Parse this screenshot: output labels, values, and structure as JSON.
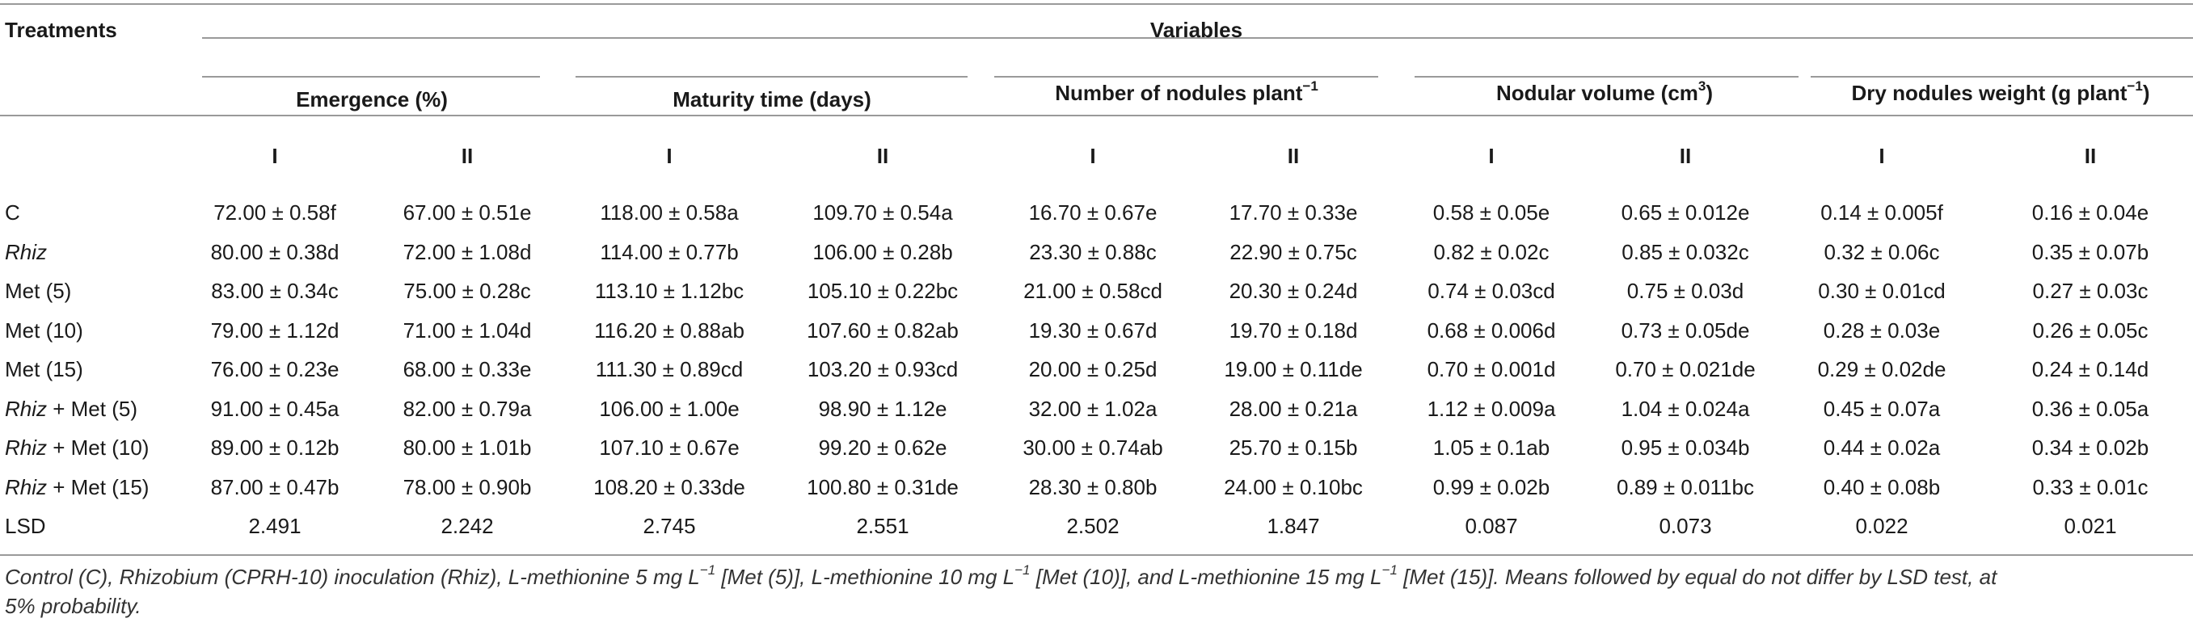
{
  "table": {
    "corner_header": "Treatments",
    "group_header": "Variables",
    "variables": [
      {
        "label": "Emergence (%)",
        "sup": ""
      },
      {
        "label": "Maturity time (days)",
        "sup": ""
      },
      {
        "label": "Number of nodules plant",
        "sup": "−1"
      },
      {
        "label": "Nodular volume (cm",
        "sup": "3",
        "suffix": ")"
      },
      {
        "label": "Dry nodules weight (g plant",
        "sup": "−1",
        "suffix": ")"
      }
    ],
    "sub_headers": [
      "I",
      "II",
      "I",
      "II",
      "I",
      "II",
      "I",
      "II",
      "I",
      "II"
    ],
    "rows": [
      {
        "pre": "",
        "label": "C",
        "values": [
          "72.00 ± 0.58f",
          "67.00 ± 0.51e",
          "118.00 ± 0.58a",
          "109.70 ± 0.54a",
          "16.70 ± 0.67e",
          "17.70 ± 0.33e",
          "0.58 ± 0.05e",
          "0.65 ± 0.012e",
          "0.14 ± 0.005f",
          "0.16 ± 0.04e"
        ]
      },
      {
        "pre": "Rhiz",
        "label": "",
        "values": [
          "80.00 ± 0.38d",
          "72.00 ± 1.08d",
          "114.00 ± 0.77b",
          "106.00 ± 0.28b",
          "23.30 ± 0.88c",
          "22.90 ± 0.75c",
          "0.82 ± 0.02c",
          "0.85 ± 0.032c",
          "0.32 ± 0.06c",
          "0.35 ± 0.07b"
        ]
      },
      {
        "pre": "",
        "label": "Met (5)",
        "values": [
          "83.00 ± 0.34c",
          "75.00 ± 0.28c",
          "113.10 ± 1.12bc",
          "105.10 ± 0.22bc",
          "21.00 ± 0.58cd",
          "20.30 ± 0.24d",
          "0.74 ± 0.03cd",
          "0.75 ± 0.03d",
          "0.30 ± 0.01cd",
          "0.27 ± 0.03c"
        ]
      },
      {
        "pre": "",
        "label": "Met (10)",
        "values": [
          "79.00 ± 1.12d",
          "71.00 ± 1.04d",
          "116.20 ± 0.88ab",
          "107.60 ± 0.82ab",
          "19.30 ± 0.67d",
          "19.70 ± 0.18d",
          "0.68 ± 0.006d",
          "0.73 ± 0.05de",
          "0.28 ± 0.03e",
          "0.26 ± 0.05c"
        ]
      },
      {
        "pre": "",
        "label": "Met (15)",
        "values": [
          "76.00 ± 0.23e",
          "68.00 ± 0.33e",
          "111.30 ± 0.89cd",
          "103.20 ± 0.93cd",
          "20.00 ± 0.25d",
          "19.00 ± 0.11de",
          "0.70 ± 0.001d",
          "0.70 ± 0.021de",
          "0.29 ± 0.02de",
          "0.24 ± 0.14d"
        ]
      },
      {
        "pre": "Rhiz",
        "label": " + Met (5)",
        "values": [
          "91.00 ± 0.45a",
          "82.00 ± 0.79a",
          "106.00 ± 1.00e",
          "98.90 ± 1.12e",
          "32.00 ± 1.02a",
          "28.00 ± 0.21a",
          "1.12 ± 0.009a",
          "1.04 ± 0.024a",
          "0.45 ± 0.07a",
          "0.36 ± 0.05a"
        ]
      },
      {
        "pre": "Rhiz",
        "label": " + Met (10)",
        "values": [
          "89.00 ± 0.12b",
          "80.00 ± 1.01b",
          "107.10 ± 0.67e",
          "99.20 ± 0.62e",
          "30.00 ± 0.74ab",
          "25.70 ± 0.15b",
          "1.05 ± 0.1ab",
          "0.95 ± 0.034b",
          "0.44 ± 0.02a",
          "0.34 ± 0.02b"
        ]
      },
      {
        "pre": "Rhiz",
        "label": " + Met (15)",
        "values": [
          "87.00 ± 0.47b",
          "78.00 ± 0.90b",
          "108.20 ± 0.33de",
          "100.80 ± 0.31de",
          "28.30 ± 0.80b",
          "24.00 ± 0.10bc",
          "0.99 ± 0.02b",
          "0.89 ± 0.011bc",
          "0.40 ± 0.08b",
          "0.33 ± 0.01c"
        ]
      },
      {
        "pre": "",
        "label": "LSD",
        "values": [
          "2.491",
          "2.242",
          "2.745",
          "2.551",
          "2.502",
          "1.847",
          "0.087",
          "0.073",
          "0.022",
          "0.021"
        ]
      }
    ],
    "footnote": {
      "line1_a": "Control (C), Rhizobium (CPRH-10) inoculation (Rhiz), L-methionine 5 mg L",
      "line1_sup1": "−1",
      "line1_b": " [Met (5)], L-methionine 10 mg L",
      "line1_sup2": "−1",
      "line1_c": " [Met (10)], and L-methionine 15 mg L",
      "line1_sup3": "−1",
      "line1_d": " [Met (15)]. Means followed by equal do not differ by LSD test, at",
      "line2": "5% probability."
    }
  }
}
